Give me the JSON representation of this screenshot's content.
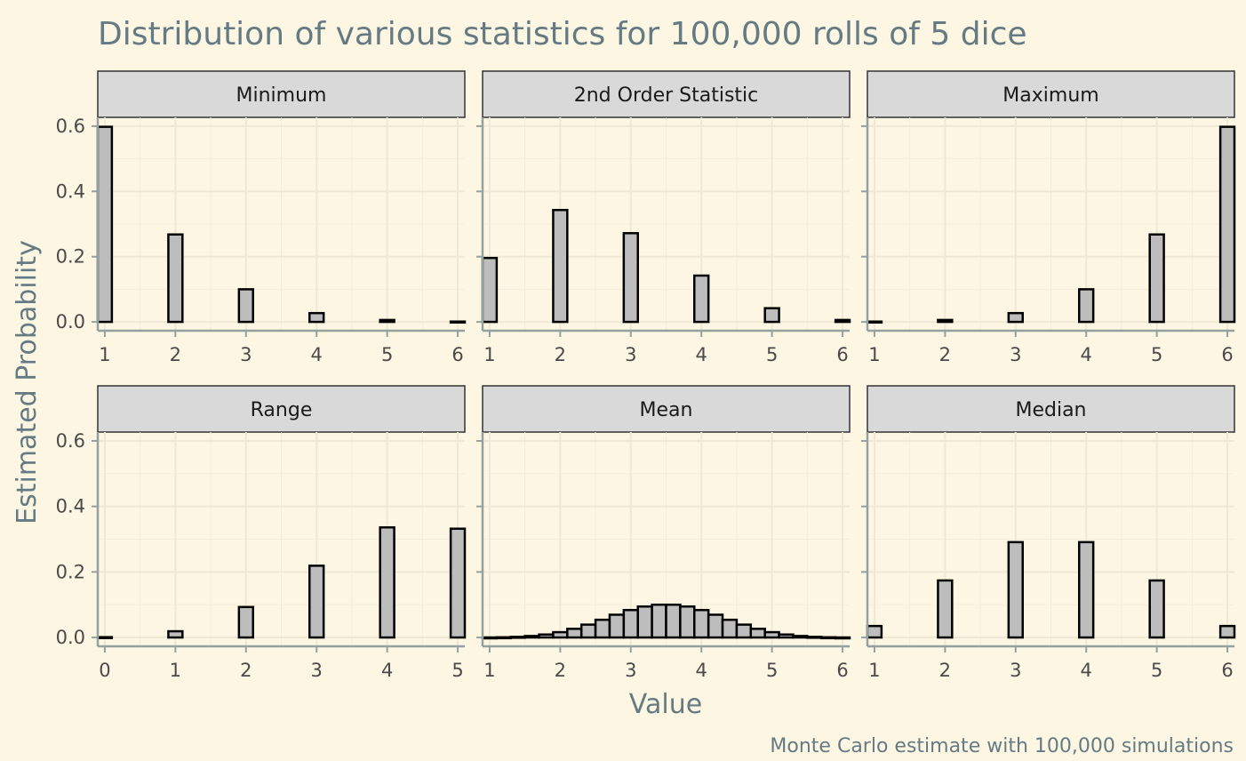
{
  "chart_data": {
    "type": "bar",
    "title": "Distribution of various statistics for 100,000 rolls of 5 dice",
    "xlabel": "Value",
    "ylabel": "Estimated Probability",
    "caption": "Monte Carlo estimate with 100,000 simulations",
    "ylim": [
      0,
      0.6
    ],
    "y_ticks": [
      0.0,
      0.2,
      0.4,
      0.6
    ],
    "y_tick_labels": [
      "0.0",
      "0.2",
      "0.4",
      "0.6"
    ],
    "grid": true,
    "layout": "facet grid 2 rows x 3 columns, shared y axis",
    "bar_color": "#bdbdbd",
    "bar_outline_color": "#000000",
    "background_color": "#fdf6e3",
    "strip_color": "#d9d9d9",
    "facets": [
      {
        "name": "Minimum",
        "x_ticks": [
          1,
          2,
          3,
          4,
          5,
          6
        ],
        "xlim": [
          0.9,
          6.1
        ],
        "bar_width": 0.2,
        "x": [
          1,
          2,
          3,
          4,
          5,
          6
        ],
        "values": [
          0.598,
          0.268,
          0.1,
          0.027,
          0.006,
          0.001
        ]
      },
      {
        "name": "2nd Order Statistic",
        "x_ticks": [
          1,
          2,
          3,
          4,
          5,
          6
        ],
        "xlim": [
          0.9,
          6.1
        ],
        "bar_width": 0.2,
        "x": [
          1,
          2,
          3,
          4,
          5,
          6
        ],
        "values": [
          0.196,
          0.343,
          0.272,
          0.142,
          0.042,
          0.006
        ]
      },
      {
        "name": "Maximum",
        "x_ticks": [
          1,
          2,
          3,
          4,
          5,
          6
        ],
        "xlim": [
          0.9,
          6.1
        ],
        "bar_width": 0.2,
        "x": [
          1,
          2,
          3,
          4,
          5,
          6
        ],
        "values": [
          0.001,
          0.006,
          0.027,
          0.1,
          0.268,
          0.598
        ]
      },
      {
        "name": "Range",
        "x_ticks": [
          0,
          1,
          2,
          3,
          4,
          5
        ],
        "xlim": [
          -0.1,
          5.1
        ],
        "bar_width": 0.2,
        "x": [
          0,
          1,
          2,
          3,
          4,
          5
        ],
        "values": [
          0.001,
          0.019,
          0.093,
          0.219,
          0.336,
          0.332
        ]
      },
      {
        "name": "Mean",
        "x_ticks": [
          1,
          2,
          3,
          4,
          5,
          6
        ],
        "xlim": [
          0.9,
          6.1
        ],
        "bar_width": 0.2,
        "x": [
          1.0,
          1.2,
          1.4,
          1.6,
          1.8,
          2.0,
          2.2,
          2.4,
          2.6,
          2.8,
          3.0,
          3.2,
          3.4,
          3.6,
          3.8,
          4.0,
          4.2,
          4.4,
          4.6,
          4.8,
          5.0,
          5.2,
          5.4,
          5.6,
          5.8,
          6.0
        ],
        "values": [
          0.0001,
          0.0006,
          0.0019,
          0.0045,
          0.009,
          0.0162,
          0.0264,
          0.0392,
          0.054,
          0.0694,
          0.0837,
          0.0945,
          0.1,
          0.1,
          0.0945,
          0.0837,
          0.0694,
          0.054,
          0.0392,
          0.0264,
          0.0162,
          0.009,
          0.0045,
          0.0019,
          0.0006,
          0.0001
        ]
      },
      {
        "name": "Median",
        "x_ticks": [
          1,
          2,
          3,
          4,
          5,
          6
        ],
        "xlim": [
          0.9,
          6.1
        ],
        "bar_width": 0.2,
        "x": [
          1,
          2,
          3,
          4,
          5,
          6
        ],
        "values": [
          0.035,
          0.174,
          0.291,
          0.291,
          0.174,
          0.035
        ]
      }
    ]
  }
}
